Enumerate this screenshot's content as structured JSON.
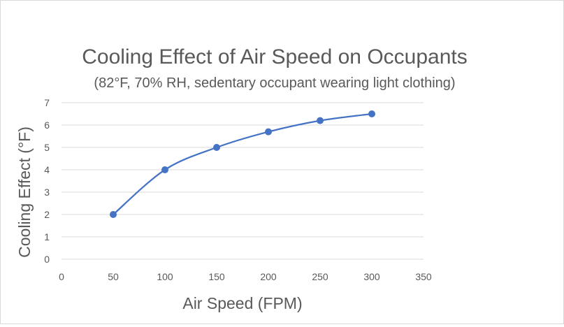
{
  "chart_data": {
    "type": "scatter",
    "title": "Cooling Effect of Air Speed on Occupants",
    "subtitle": "(82°F, 70% RH, sedentary occupant wearing light clothing)",
    "xlabel": "Air Speed (FPM)",
    "ylabel": "Cooling Effect (°F)",
    "xlim": [
      0,
      350
    ],
    "ylim": [
      0,
      7
    ],
    "xticks": [
      0,
      50,
      100,
      150,
      200,
      250,
      300,
      350
    ],
    "yticks": [
      0,
      1,
      2,
      3,
      4,
      5,
      6,
      7
    ],
    "grid": "horizontal",
    "legend": "none",
    "line_style": "smooth",
    "series_color": "#4472c4",
    "series": [
      {
        "x": [
          50,
          100,
          150,
          200,
          250,
          300
        ],
        "y": [
          2,
          4,
          5,
          5.7,
          6.2,
          6.5
        ]
      }
    ]
  }
}
